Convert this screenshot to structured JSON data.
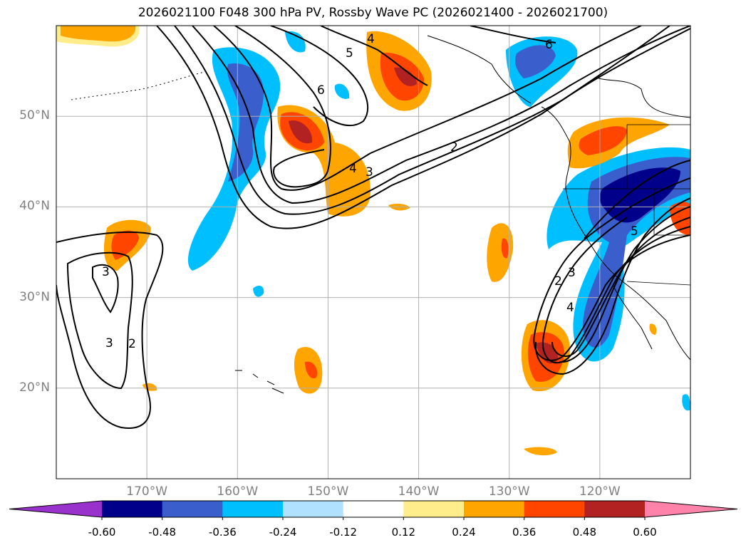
{
  "title": "2026021100 F048 300 hPa PV, Rossby Wave PC (2026021400 - 2026021700)",
  "map": {
    "lon_range": [
      -180,
      -110
    ],
    "lat_range": [
      10,
      60
    ],
    "lat_ticks": [
      {
        "value": 50,
        "label": "50°N"
      },
      {
        "value": 40,
        "label": "40°N"
      },
      {
        "value": 30,
        "label": "30°N"
      },
      {
        "value": 20,
        "label": "20°N"
      }
    ],
    "lon_ticks": [
      {
        "value": -170,
        "label": "170°W"
      },
      {
        "value": -160,
        "label": "160°W"
      },
      {
        "value": -150,
        "label": "150°W"
      },
      {
        "value": -140,
        "label": "140°W"
      },
      {
        "value": -130,
        "label": "130°W"
      },
      {
        "value": -120,
        "label": "120°W"
      }
    ],
    "gridlines": true,
    "contour_field": "300 hPa PV (PVU)",
    "contour_labels": [
      "2",
      "3",
      "4",
      "5",
      "6"
    ],
    "shading_field": "Rossby Wave PC"
  },
  "colorbar": {
    "levels": [
      "-0.60",
      "-0.48",
      "-0.36",
      "-0.24",
      "-0.12",
      "0.12",
      "0.24",
      "0.36",
      "0.48",
      "0.60"
    ],
    "colors": [
      "#9932cc",
      "#00008b",
      "#3a5fcd",
      "#00bfff",
      "#b0e2ff",
      "#ffffff",
      "#ffec8b",
      "#ffa500",
      "#ff4500",
      "#b22222",
      "#ff82ab"
    ],
    "extend": "both"
  }
}
